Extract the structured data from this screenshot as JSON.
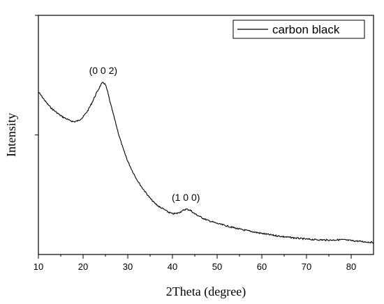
{
  "chart_data": {
    "type": "line",
    "title": "",
    "xlabel": "2Theta (degree)",
    "ylabel": "Intensity",
    "xlim": [
      10,
      85
    ],
    "ylim": [
      0,
      1
    ],
    "x_ticks": [
      10,
      20,
      30,
      40,
      50,
      60,
      70,
      80
    ],
    "y_tick_labels_shown": false,
    "grid": false,
    "legend": {
      "position": "top-right",
      "entries": [
        "carbon black"
      ]
    },
    "series": [
      {
        "name": "carbon black",
        "color": "#000000",
        "x": [
          10,
          11,
          12,
          13,
          14,
          15,
          16,
          17,
          18,
          19,
          20,
          21,
          22,
          23,
          24,
          24.5,
          25,
          25.5,
          26,
          27,
          28,
          29,
          30,
          31,
          32,
          33,
          34,
          35,
          36,
          37,
          38,
          39,
          40,
          41,
          42,
          43,
          44,
          45,
          46,
          47,
          48,
          50,
          52,
          55,
          58,
          60,
          62,
          65,
          68,
          70,
          72,
          75,
          78,
          80,
          82,
          85
        ],
        "y": [
          0.68,
          0.655,
          0.63,
          0.61,
          0.595,
          0.58,
          0.57,
          0.56,
          0.555,
          0.56,
          0.575,
          0.6,
          0.635,
          0.675,
          0.71,
          0.72,
          0.71,
          0.68,
          0.64,
          0.57,
          0.5,
          0.44,
          0.39,
          0.35,
          0.315,
          0.285,
          0.26,
          0.235,
          0.215,
          0.2,
          0.19,
          0.178,
          0.17,
          0.172,
          0.18,
          0.19,
          0.185,
          0.17,
          0.16,
          0.15,
          0.142,
          0.13,
          0.12,
          0.106,
          0.095,
          0.088,
          0.082,
          0.074,
          0.068,
          0.064,
          0.062,
          0.06,
          0.062,
          0.058,
          0.055,
          0.05
        ]
      }
    ],
    "annotations": [
      {
        "text": "(0 0 2)",
        "x": 24.5,
        "y": 0.72
      },
      {
        "text": "(1 0 0)",
        "x": 43,
        "y": 0.19
      }
    ]
  }
}
